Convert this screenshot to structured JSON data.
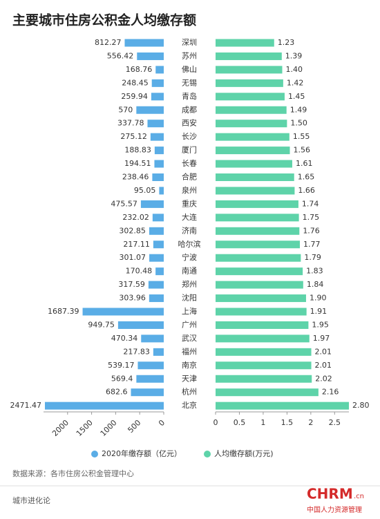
{
  "chart_data": {
    "type": "butterfly",
    "title": "主要城市住房公积金人均缴存额",
    "categories": [
      "深圳",
      "苏州",
      "佛山",
      "无锡",
      "青岛",
      "成都",
      "西安",
      "长沙",
      "厦门",
      "长春",
      "合肥",
      "泉州",
      "重庆",
      "大连",
      "济南",
      "哈尔滨",
      "宁波",
      "南通",
      "郑州",
      "沈阳",
      "上海",
      "广州",
      "武汉",
      "福州",
      "南京",
      "天津",
      "杭州",
      "北京"
    ],
    "series": [
      {
        "name": "2020年缴存额（亿元）",
        "color": "#5aade6",
        "values": [
          812.27,
          556.42,
          168.76,
          248.45,
          259.94,
          570,
          337.78,
          275.12,
          188.83,
          194.51,
          238.46,
          95.05,
          475.57,
          232.02,
          302.85,
          217.11,
          301.07,
          170.48,
          317.59,
          303.96,
          1687.39,
          949.75,
          470.34,
          217.83,
          539.17,
          569.4,
          682.6,
          2471.47
        ]
      },
      {
        "name": "人均缴存额(万元)",
        "color": "#5ed3a9",
        "axis": "x2",
        "values": [
          1.23,
          1.39,
          1.4,
          1.42,
          1.45,
          1.49,
          1.5,
          1.55,
          1.56,
          1.61,
          1.65,
          1.66,
          1.74,
          1.75,
          1.76,
          1.77,
          1.79,
          1.83,
          1.84,
          1.9,
          1.91,
          1.95,
          1.97,
          2.01,
          2.01,
          2.02,
          2.16,
          2.8
        ],
        "value_labels": [
          "1.23",
          "1.39",
          "1.40",
          "1.42",
          "1.45",
          "1.49",
          "1.50",
          "1.55",
          "1.56",
          "1.61",
          "1.65",
          "1.66",
          "1.74",
          "1.75",
          "1.76",
          "1.77",
          "1.79",
          "1.83",
          "1.84",
          "1.90",
          "1.91",
          "1.95",
          "1.97",
          "2.01",
          "2.01",
          "2.02",
          "2.16",
          "2.80"
        ]
      }
    ],
    "xlim": [
      0,
      2500
    ],
    "xticks": [
      0,
      500,
      1000,
      1500,
      2000
    ],
    "x2lim": [
      0,
      2.8
    ],
    "x2ticks": [
      0,
      0.5,
      1,
      1.5,
      2,
      2.5
    ],
    "source": "数据来源：各市住房公积金管理中心",
    "footer": "城市进化论",
    "logo": {
      "text": "CHRM",
      "suffix": ".cn",
      "tagline": "中国人力资源管理"
    }
  }
}
